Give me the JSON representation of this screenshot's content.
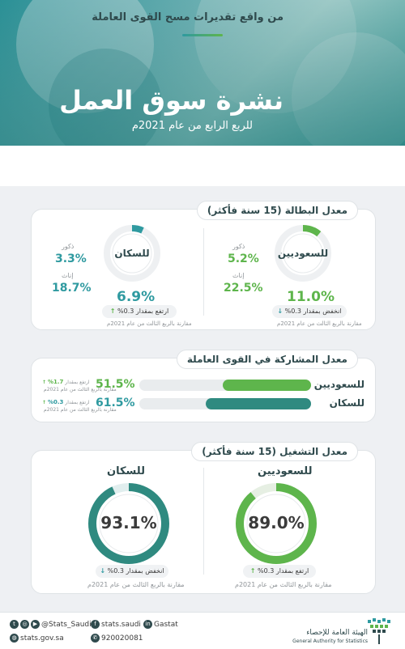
{
  "header": {
    "title": "نشرة سوق العمل",
    "subtitle": "للربع الرابع من عام 2021م"
  },
  "intro": {
    "text": "من واقع تقديرات مسح القوى العاملة"
  },
  "unemployment": {
    "title": "معدل البطالة (15 سنة فأكثر)",
    "saudis": {
      "label": "للسعوديين",
      "value": "11.0%",
      "value_fraction": 0.11,
      "male_label": "ذكور",
      "male_value": "5.2%",
      "female_label": "إناث",
      "female_value": "22.5%",
      "change_text": "انخفض بمقدار 0.3%",
      "change_direction": "down",
      "comparison": "مقارنة بالربع الثالث من عام 2021م"
    },
    "population": {
      "label": "للسكان",
      "value": "6.9%",
      "value_fraction": 0.069,
      "male_label": "ذكور",
      "male_value": "3.3%",
      "female_label": "إناث",
      "female_value": "18.7%",
      "change_text": "ارتفع بمقدار 0.3%",
      "change_direction": "up",
      "comparison": "مقارنة بالربع الثالث من عام 2021م"
    }
  },
  "participation": {
    "title": "معدل المشاركة في القوى العاملة",
    "rows": [
      {
        "label": "للسعوديين",
        "value": "51.5%",
        "fraction": 0.515,
        "change": "1.7%",
        "change_label": "ارتفع بمقدار",
        "note": "مقارنة بالربع الثالث من عام 2021م"
      },
      {
        "label": "للسكان",
        "value": "61.5%",
        "fraction": 0.615,
        "change": "0.3%",
        "change_label": "ارتفع بمقدار",
        "note": "مقارنة بالربع الثالث من عام 2021م"
      }
    ]
  },
  "employment": {
    "title": "معدل التشغيل (15 سنة فأكثر)",
    "saudis": {
      "label": "للسعوديين",
      "value": "89.0%",
      "value_fraction": 0.89,
      "change_text": "ارتفع بمقدار 0.3%",
      "change_direction": "up",
      "comparison": "مقارنة بالربع الثالث من عام 2021م"
    },
    "population": {
      "label": "للسكان",
      "value": "93.1%",
      "value_fraction": 0.931,
      "change_text": "انخفض بمقدار 0.3%",
      "change_direction": "down",
      "comparison": "مقارنة بالربع الثالث من عام 2021م"
    }
  },
  "footer": {
    "twitter": "@Stats_Saudi",
    "facebook": "stats.saudi",
    "linkedin": "Gastat",
    "website": "stats.gov.sa",
    "phone": "920020081",
    "org_ar": "الهيئة العامة للإحصاء",
    "org_en": "General Authority for Statistics"
  },
  "colors": {
    "teal": "#2f9aa0",
    "green": "#5eb54c",
    "dark_teal": "#2f8a80"
  }
}
